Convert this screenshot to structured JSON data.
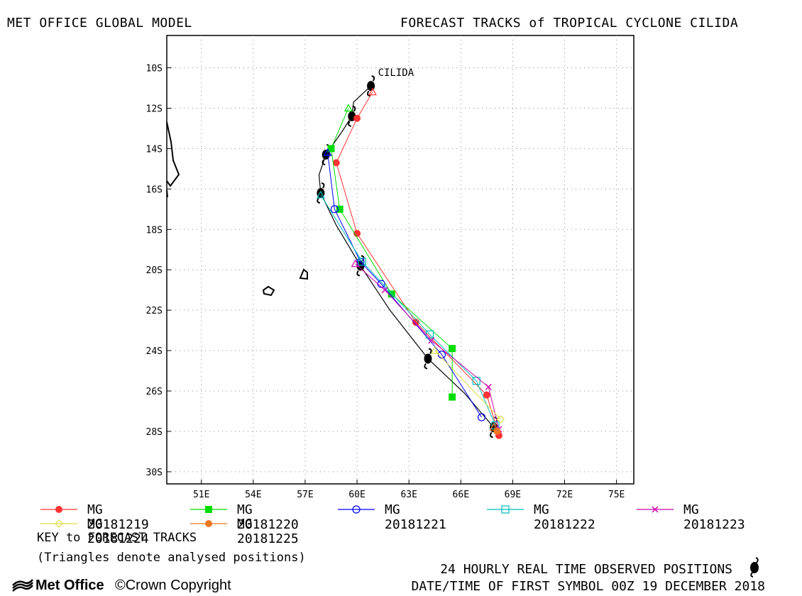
{
  "header": {
    "left_title": "MET OFFICE GLOBAL MODEL",
    "right_title": "FORECAST TRACKS of TROPICAL CYCLONE CILIDA"
  },
  "chart_data": {
    "type": "map-tracks",
    "storm_label": "CILIDA",
    "x_ticks": [
      "51E",
      "54E",
      "57E",
      "60E",
      "63E",
      "66E",
      "69E",
      "72E",
      "75E"
    ],
    "y_ticks": [
      "10S",
      "12S",
      "14S",
      "16S",
      "18S",
      "20S",
      "22S",
      "24S",
      "26S",
      "28S",
      "30S"
    ],
    "xlim": [
      49.0,
      76.0
    ],
    "ylim": [
      -30.6,
      -8.4
    ],
    "grid": true,
    "observed_positions": [
      [
        60.8,
        -10.9
      ],
      [
        59.7,
        -12.4
      ],
      [
        58.2,
        -14.3
      ],
      [
        57.9,
        -16.2
      ],
      [
        60.2,
        -19.8
      ],
      [
        64.1,
        -24.4
      ],
      [
        67.9,
        -27.8
      ]
    ],
    "observed_path": [
      [
        60.8,
        -10.9
      ],
      [
        59.8,
        -11.7
      ],
      [
        59.7,
        -12.4
      ],
      [
        59.1,
        -13.2
      ],
      [
        58.2,
        -14.3
      ],
      [
        57.8,
        -15.3
      ],
      [
        57.9,
        -16.2
      ],
      [
        58.8,
        -17.8
      ],
      [
        60.2,
        -19.8
      ],
      [
        61.9,
        -22.0
      ],
      [
        64.1,
        -24.4
      ],
      [
        66.2,
        -26.1
      ],
      [
        67.9,
        -27.8
      ]
    ],
    "series": [
      {
        "name": "MG 20181219",
        "color": "#ff3333",
        "marker": "filled-circle",
        "points": [
          [
            60.9,
            -11.2
          ],
          [
            60.0,
            -12.5
          ],
          [
            58.8,
            -14.7
          ],
          [
            60.0,
            -18.2
          ],
          [
            63.4,
            -22.6
          ],
          [
            67.5,
            -26.2
          ],
          [
            68.2,
            -28.2
          ]
        ]
      },
      {
        "name": "MG 20181220",
        "color": "#00dd00",
        "marker": "filled-square",
        "points": [
          [
            59.5,
            -12.0
          ],
          [
            58.5,
            -14.0
          ],
          [
            59.0,
            -17.0
          ],
          [
            62.0,
            -21.2
          ],
          [
            65.5,
            -23.9
          ],
          [
            65.5,
            -26.3
          ]
        ]
      },
      {
        "name": "MG 20181221",
        "color": "#0000ff",
        "marker": "open-circle",
        "points": [
          [
            58.3,
            -14.2
          ],
          [
            58.7,
            -17.0
          ],
          [
            60.2,
            -19.6
          ],
          [
            61.4,
            -20.7
          ],
          [
            64.9,
            -24.2
          ],
          [
            67.2,
            -27.3
          ]
        ]
      },
      {
        "name": "MG 20181222",
        "color": "#00bbbb",
        "marker": "open-square",
        "points": [
          [
            57.9,
            -16.3
          ],
          [
            60.3,
            -19.6
          ],
          [
            64.2,
            -23.2
          ],
          [
            66.9,
            -25.5
          ],
          [
            68.0,
            -27.7
          ]
        ]
      },
      {
        "name": "MG 20181223",
        "color": "#cc00aa",
        "marker": "x",
        "points": [
          [
            59.9,
            -19.7
          ],
          [
            61.6,
            -21.0
          ],
          [
            64.3,
            -23.5
          ],
          [
            67.6,
            -25.8
          ],
          [
            68.2,
            -27.9
          ]
        ]
      },
      {
        "name": "MG 20181224",
        "color": "#dddd44",
        "marker": "open-diamond",
        "points": [
          [
            64.5,
            -24.0
          ],
          [
            68.3,
            -27.4
          ]
        ]
      },
      {
        "name": "MG 20181225",
        "color": "#ee7722",
        "marker": "filled-circle",
        "points": [
          [
            67.9,
            -27.8
          ],
          [
            68.1,
            -28.0
          ]
        ]
      }
    ]
  },
  "legend": {
    "items": [
      {
        "label": "MG 20181219",
        "color": "#ff3333",
        "marker": "filled-circle"
      },
      {
        "label": "MG 20181220",
        "color": "#00dd00",
        "marker": "filled-square"
      },
      {
        "label": "MG 20181221",
        "color": "#0000ff",
        "marker": "open-circle"
      },
      {
        "label": "MG 20181222",
        "color": "#00bbbb",
        "marker": "open-square"
      },
      {
        "label": "MG 20181223",
        "color": "#cc00aa",
        "marker": "x"
      },
      {
        "label": "MG 20181224",
        "color": "#dddd44",
        "marker": "open-diamond"
      },
      {
        "label": "MG 20181225",
        "color": "#ee7722",
        "marker": "filled-circle"
      }
    ],
    "key_title": "KEY to FORECAST TRACKS",
    "key_note": "(Triangles denote analysed positions)"
  },
  "footer": {
    "observed_note": "24 HOURLY REAL TIME OBSERVED POSITIONS",
    "first_symbol": "DATE/TIME OF FIRST SYMBOL 00Z 19 DECEMBER 2018",
    "brand": "Met Office",
    "copyright": "©Crown Copyright"
  }
}
